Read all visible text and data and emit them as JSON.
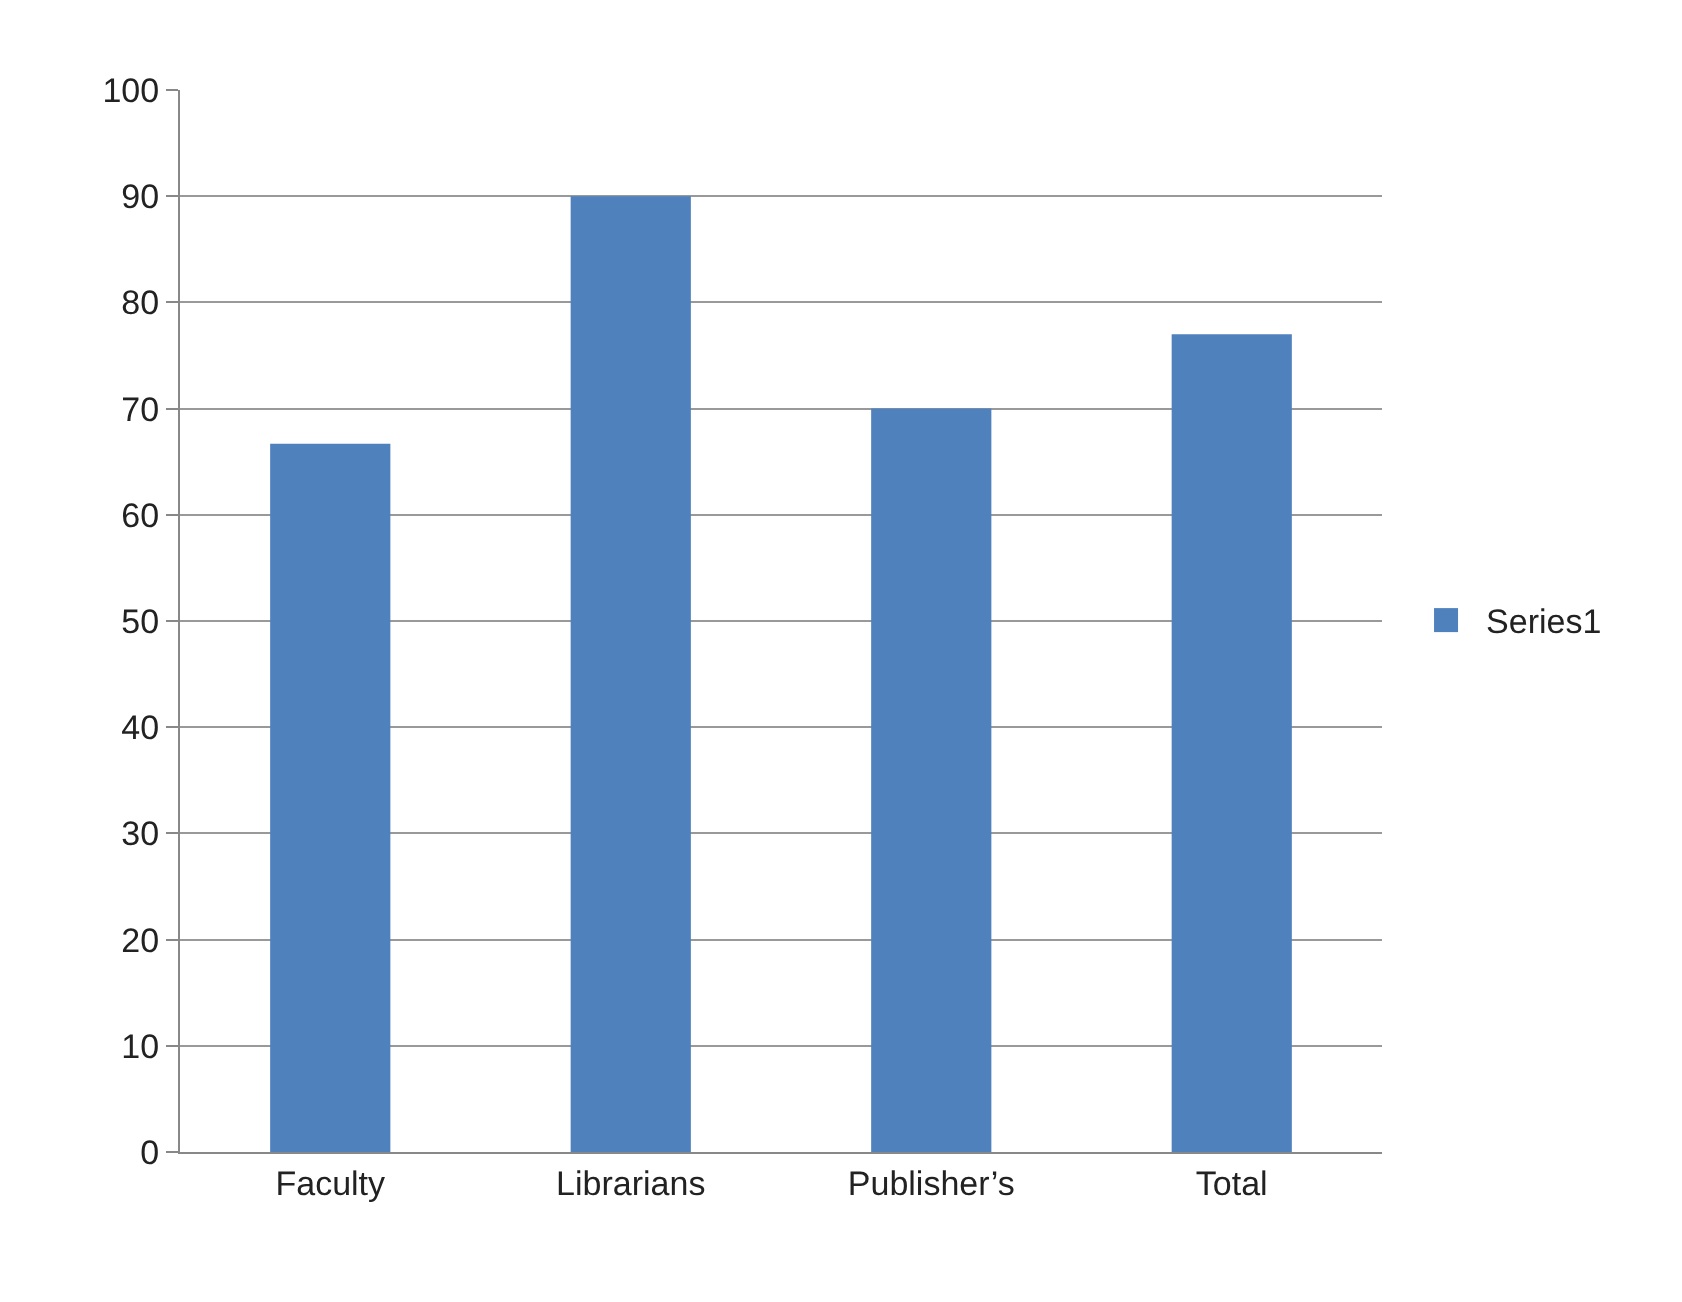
{
  "chart_data": {
    "type": "bar",
    "categories": [
      "Faculty",
      "Librarians",
      "Publisher’s",
      "Total"
    ],
    "series": [
      {
        "name": "Series1",
        "color": "#4f81bd",
        "values": [
          66.7,
          90,
          70,
          77
        ]
      }
    ],
    "ylim": [
      0,
      100
    ],
    "yticks": [
      0,
      10,
      20,
      30,
      40,
      50,
      60,
      70,
      80,
      90,
      100
    ],
    "grid": "y",
    "legend": "right"
  }
}
